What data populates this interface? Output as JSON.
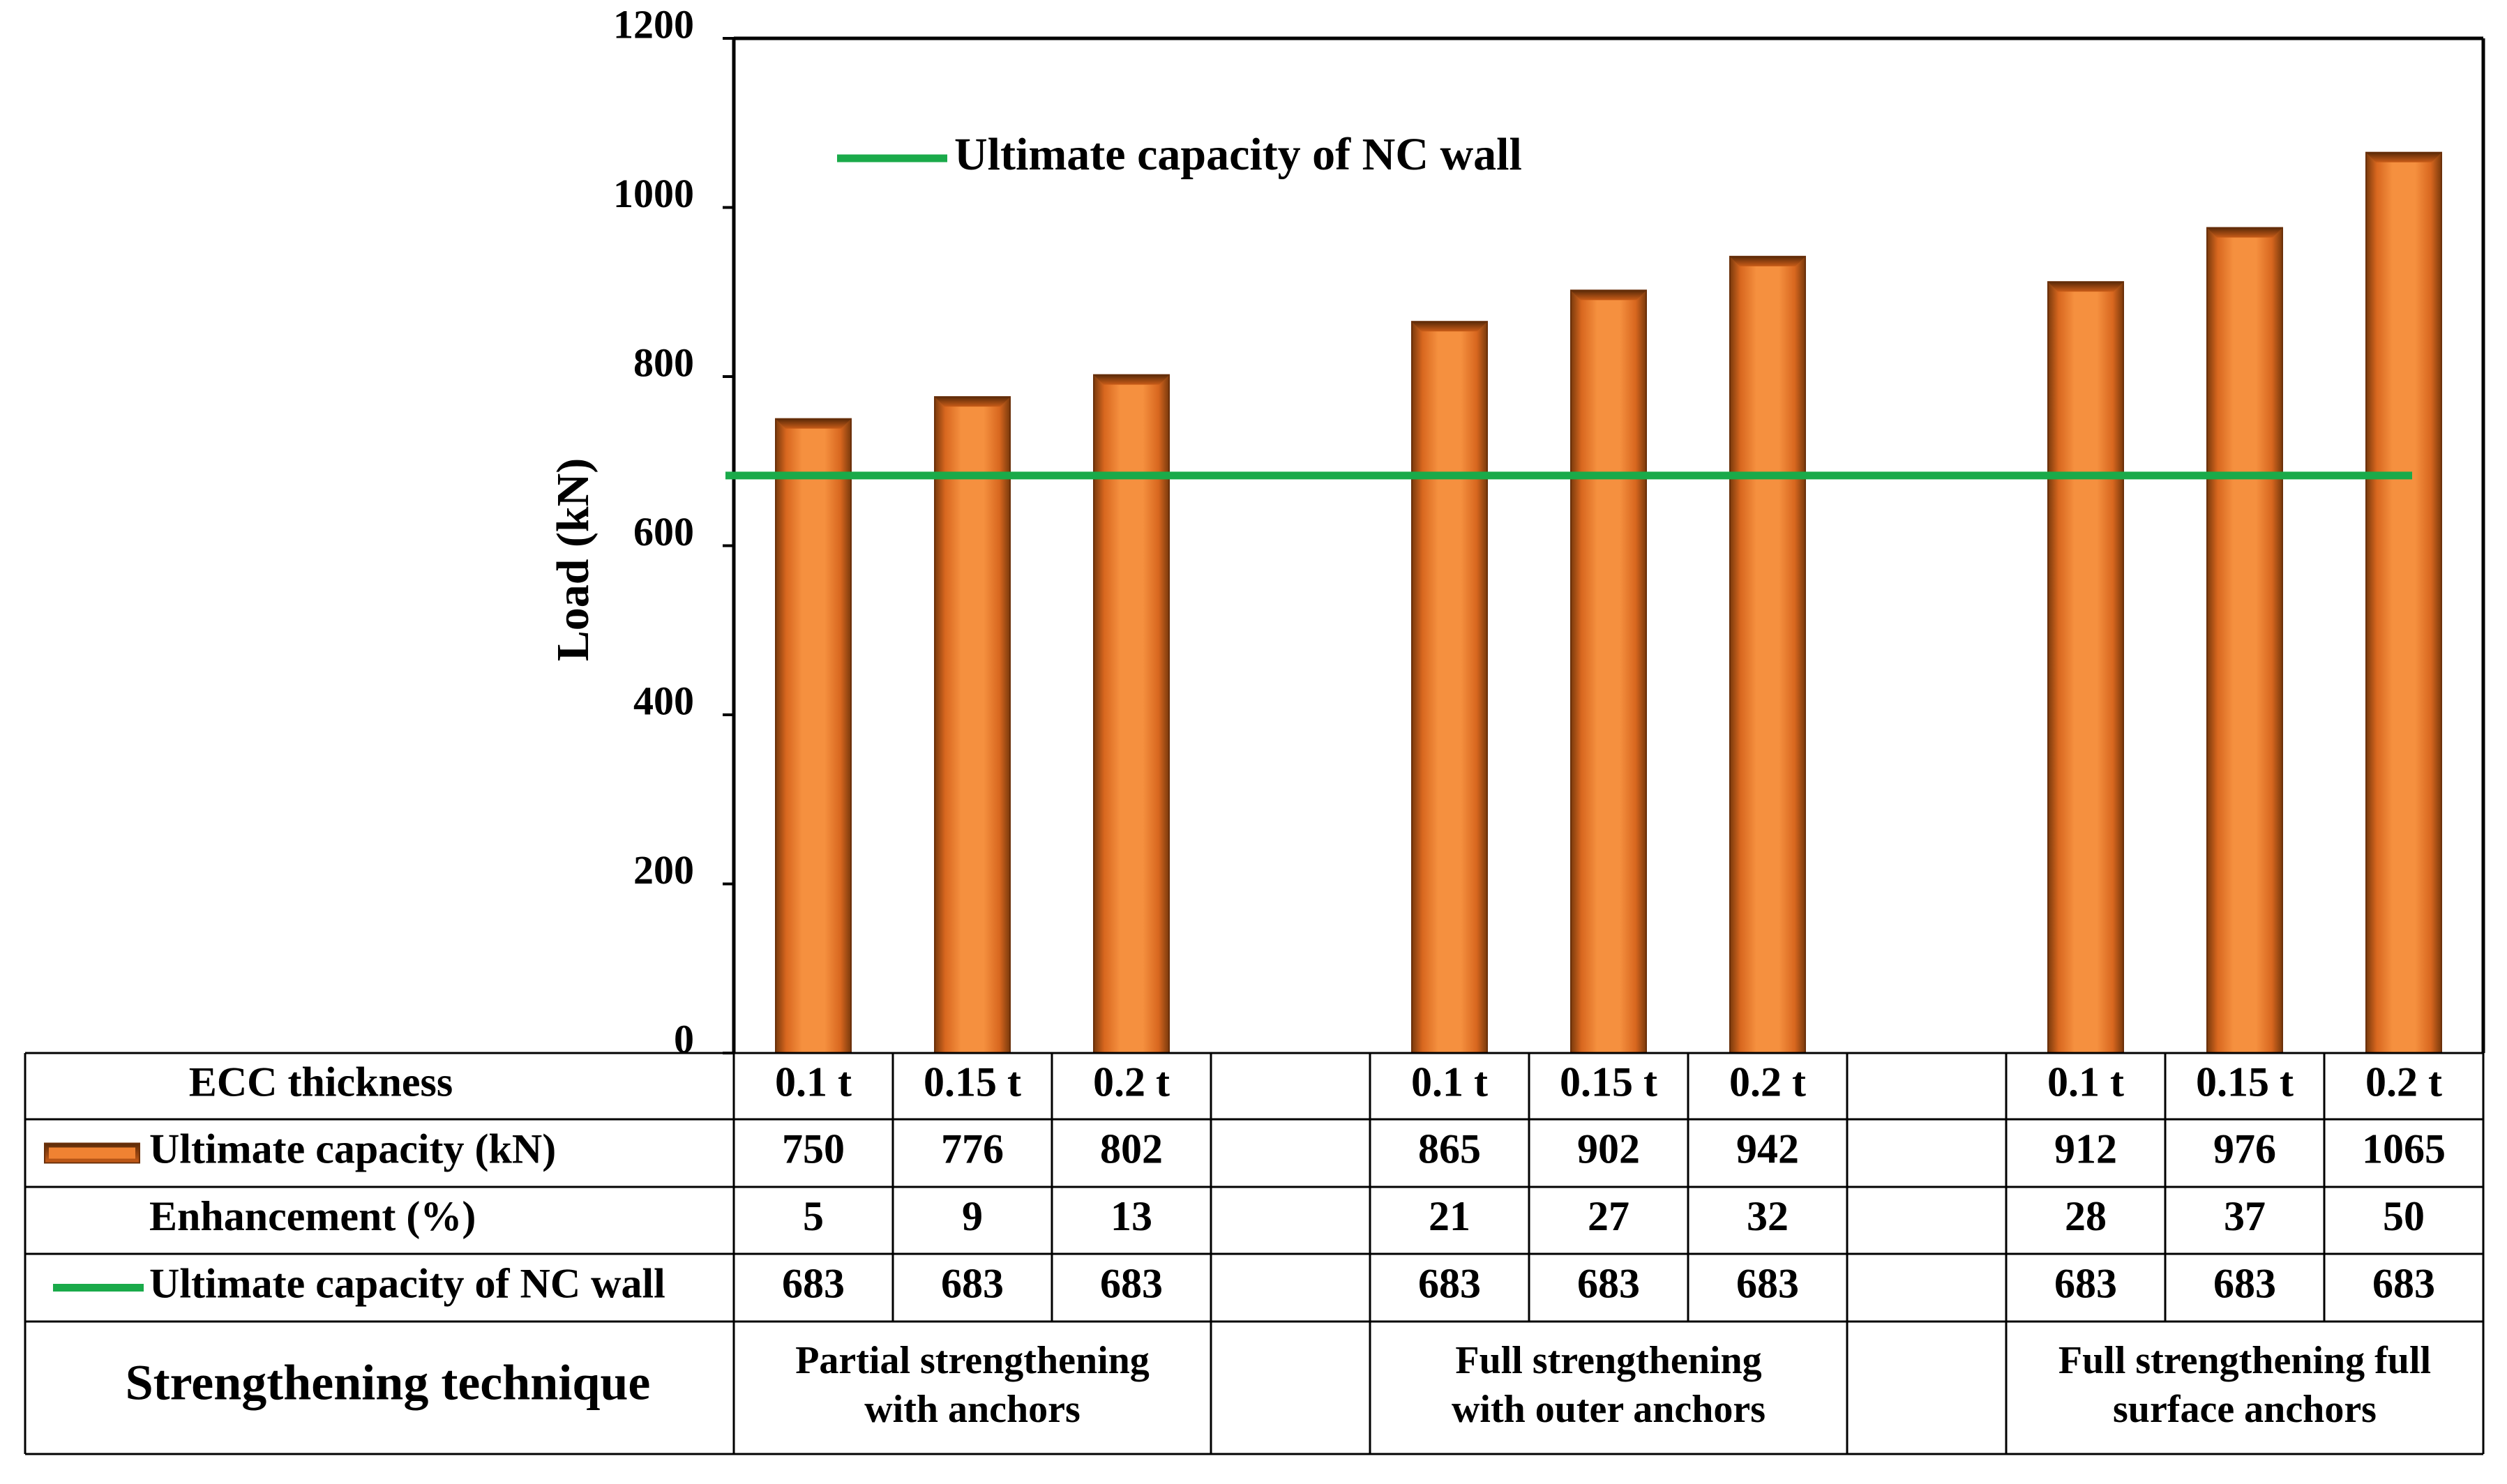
{
  "chart_data": {
    "type": "bar",
    "ylabel": "Load   (kN)",
    "ylim": [
      0,
      1200
    ],
    "yticks": [
      0,
      200,
      400,
      600,
      800,
      1000,
      1200
    ],
    "grid": false,
    "legend_position": "top-left",
    "bar_color": "#f08232",
    "reference_line": {
      "name": "Ultimate capacity of NC wall",
      "value": 683,
      "color": "#1aaa4a"
    },
    "groups": [
      {
        "technique": [
          "Partial strengthening",
          "with anchors"
        ],
        "thickness": [
          "0.1 t",
          "0.15 t",
          "0.2 t"
        ],
        "capacity": [
          750,
          776,
          802
        ],
        "enhancement": [
          5,
          9,
          13
        ],
        "nc_wall": [
          683,
          683,
          683
        ]
      },
      {
        "technique": [
          "Full strengthening",
          "with outer anchors"
        ],
        "thickness": [
          "0.1 t",
          "0.15 t",
          "0.2 t"
        ],
        "capacity": [
          865,
          902,
          942
        ],
        "enhancement": [
          21,
          27,
          32
        ],
        "nc_wall": [
          683,
          683,
          683
        ]
      },
      {
        "technique": [
          "Full strengthening full",
          "surface anchors"
        ],
        "thickness": [
          "0.1 t",
          "0.15 t",
          "0.2 t"
        ],
        "capacity": [
          912,
          976,
          1065
        ],
        "enhancement": [
          28,
          37,
          50
        ],
        "nc_wall": [
          683,
          683,
          683
        ]
      }
    ],
    "table_rows": {
      "thickness": "ECC thickness",
      "capacity": "Ultimate capacity (kN)",
      "enhancement": "Enhancement (%)",
      "nc_wall": "Ultimate capacity of NC wall",
      "technique": "Strengthening technique"
    }
  }
}
